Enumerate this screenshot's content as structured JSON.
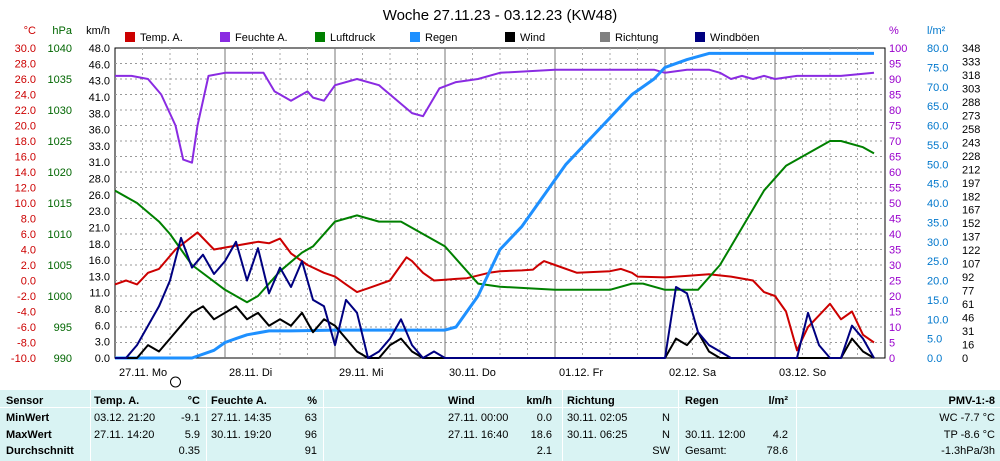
{
  "chart_data": {
    "type": "line",
    "title": "Woche 27.11.23 - 03.12.23 (KW48)",
    "x_range": [
      "27.11.23 00:00",
      "03.12.23 24:00"
    ],
    "categories": [
      "27.11. Mo",
      "28.11. Di",
      "29.11. Mi",
      "30.11. Do",
      "01.12. Fr",
      "02.12. Sa",
      "03.12. So"
    ],
    "grid": true,
    "axes_left": [
      {
        "unit": "°C",
        "range": [
          -10.0,
          30.0
        ],
        "color": "#cc0000",
        "ticks": [
          "30.0",
          "28.0",
          "26.0",
          "24.0",
          "22.0",
          "20.0",
          "18.0",
          "16.0",
          "14.0",
          "12.0",
          "10.0",
          "8.0",
          "6.0",
          "4.0",
          "2.0",
          "0.0",
          "-2.0",
          "-4.0",
          "-6.0",
          "-8.0",
          "-10.0"
        ]
      },
      {
        "unit": "hPa",
        "range": [
          990,
          1040
        ],
        "color": "#006600",
        "ticks": [
          "1040",
          "1035",
          "1030",
          "1025",
          "1020",
          "1015",
          "1010",
          "1005",
          "1000",
          "995",
          "990"
        ]
      },
      {
        "unit": "km/h",
        "range": [
          0,
          48
        ],
        "color": "#000000",
        "ticks": [
          "48.0",
          "46.0",
          "43.0",
          "41.0",
          "38.0",
          "36.0",
          "33.0",
          "31.0",
          "28.0",
          "26.0",
          "23.0",
          "21.0",
          "18.0",
          "16.0",
          "13.0",
          "11.0",
          "8.0",
          "6.0",
          "3.0",
          "0.0"
        ]
      }
    ],
    "axes_right": [
      {
        "unit": "%",
        "range": [
          0,
          100
        ],
        "color": "#9900cc",
        "ticks": [
          "100",
          "95",
          "90",
          "85",
          "80",
          "75",
          "70",
          "65",
          "60",
          "55",
          "50",
          "45",
          "40",
          "35",
          "30",
          "25",
          "20",
          "15",
          "10",
          "5",
          "0"
        ]
      },
      {
        "unit": "l/m²",
        "range": [
          0,
          80
        ],
        "color": "#0077cc",
        "ticks": [
          "80.0",
          "75.0",
          "70.0",
          "65.0",
          "60.0",
          "55.0",
          "50.0",
          "45.0",
          "40.0",
          "35.0",
          "30.0",
          "25.0",
          "20.0",
          "15.0",
          "10.0",
          "5.0",
          "0.0"
        ]
      },
      {
        "unit": "",
        "range": [
          0,
          360
        ],
        "color": "#000000",
        "ticks": [
          "348",
          "333",
          "318",
          "303",
          "288",
          "273",
          "258",
          "243",
          "228",
          "212",
          "197",
          "182",
          "167",
          "152",
          "137",
          "122",
          "107",
          "92",
          "77",
          "61",
          "46",
          "31",
          "16",
          "0"
        ]
      }
    ],
    "legend": [
      {
        "name": "Temp. A.",
        "color": "#cc0000"
      },
      {
        "name": "Feuchte A.",
        "color": "#8a2be2"
      },
      {
        "name": "Luftdruck",
        "color": "#008000"
      },
      {
        "name": "Regen",
        "color": "#1e90ff"
      },
      {
        "name": "Wind",
        "color": "#000000"
      },
      {
        "name": "Richtung",
        "color": "#808080"
      },
      {
        "name": "Windböen",
        "color": "#000080"
      }
    ],
    "legend_placement": "top",
    "series": [
      {
        "name": "Temp. A.",
        "axis": "°C",
        "x": [
          0,
          0.1,
          0.2,
          0.3,
          0.4,
          0.55,
          0.75,
          0.9,
          1.1,
          1.3,
          1.4,
          1.5,
          1.6,
          1.75,
          1.9,
          2.0,
          2.1,
          2.2,
          2.3,
          2.4,
          2.5,
          2.6,
          2.65,
          2.7,
          2.8,
          2.9,
          3.0,
          3.1,
          3.2,
          3.4,
          3.5,
          3.7,
          3.8,
          3.85,
          3.9,
          4.0,
          4.2,
          4.5,
          4.6,
          4.7,
          4.75,
          5.0,
          5.2,
          5.4,
          5.6,
          5.8,
          5.9,
          6.0,
          6.1,
          6.2,
          6.3,
          6.4,
          6.5,
          6.6,
          6.7,
          6.8,
          6.9
        ],
        "y": [
          -0.5,
          0,
          -0.5,
          1,
          1.5,
          4,
          6.2,
          4,
          4.5,
          5,
          4.8,
          5.4,
          3.5,
          2,
          1,
          0.5,
          -0.5,
          -1.5,
          -1,
          -0.5,
          0,
          2,
          3,
          2.5,
          1,
          0,
          0.1,
          0.2,
          0.3,
          1,
          1.2,
          1.3,
          1.4,
          2,
          2.5,
          2,
          1,
          1.2,
          1.5,
          1,
          0.5,
          0.4,
          0.6,
          0.8,
          0.5,
          0,
          -1.5,
          -2,
          -4,
          -9,
          -6,
          -4.5,
          -3,
          -5,
          -4,
          -7,
          -8
        ]
      },
      {
        "name": "Feuchte A.",
        "axis": "%",
        "x": [
          0,
          0.15,
          0.3,
          0.42,
          0.55,
          0.62,
          0.7,
          0.75,
          0.85,
          1.0,
          1.2,
          1.35,
          1.45,
          1.6,
          1.75,
          1.8,
          1.9,
          2.0,
          2.2,
          2.4,
          2.5,
          2.7,
          2.8,
          2.95,
          3.1,
          3.3,
          3.5,
          4.0,
          4.5,
          4.9,
          5.0,
          5.2,
          5.4,
          5.5,
          5.6,
          5.7,
          5.8,
          5.9,
          6.0,
          6.2,
          6.4,
          6.6,
          6.9
        ],
        "y": [
          91,
          91,
          90,
          85,
          75,
          64,
          63,
          75,
          91,
          92,
          92,
          92,
          86,
          83,
          86,
          84,
          83,
          88,
          90,
          88,
          85,
          79,
          78,
          87,
          89,
          90,
          92,
          93,
          93,
          93,
          92,
          93,
          93,
          92,
          90,
          91,
          90,
          91,
          90,
          91,
          91,
          91,
          92
        ]
      },
      {
        "name": "Luftdruck",
        "axis": "hPa",
        "x": [
          0,
          0.2,
          0.4,
          0.5,
          0.7,
          1.0,
          1.2,
          1.3,
          1.5,
          1.7,
          1.8,
          2.0,
          2.2,
          2.3,
          2.4,
          2.6,
          2.8,
          3.0,
          3.1,
          3.2,
          3.3,
          3.5,
          4.0,
          4.2,
          4.5,
          4.7,
          4.8,
          5.0,
          5.3,
          5.5,
          5.7,
          5.9,
          6.1,
          6.3,
          6.5,
          6.6,
          6.8,
          6.9
        ],
        "y": [
          1017,
          1015,
          1012,
          1010,
          1005,
          1001,
          999,
          1000,
          1004,
          1007,
          1008,
          1012,
          1013,
          1012.5,
          1012,
          1012,
          1010,
          1008,
          1006,
          1004,
          1002,
          1001.5,
          1001,
          1001,
          1001,
          1002,
          1002,
          1001,
          1001,
          1005,
          1011,
          1017,
          1021,
          1023,
          1025,
          1025,
          1024,
          1023
        ]
      },
      {
        "name": "Regen",
        "axis": "l/m²",
        "x": [
          0,
          0.3,
          0.5,
          0.7,
          0.9,
          1.0,
          1.1,
          1.2,
          1.4,
          1.6,
          2.0,
          2.5,
          3.0,
          3.1,
          3.3,
          3.5,
          3.7,
          3.9,
          4.1,
          4.3,
          4.5,
          4.7,
          4.9,
          5.0,
          5.2,
          5.4,
          6.0,
          6.5,
          6.9
        ],
        "y": [
          0,
          0,
          0,
          0,
          2,
          4,
          5,
          6,
          7,
          7,
          7.2,
          7.2,
          7.2,
          8,
          16,
          28,
          34,
          42,
          50,
          56,
          62,
          68,
          72,
          75,
          77,
          78.6,
          78.6,
          78.6,
          78.6
        ]
      },
      {
        "name": "Wind",
        "axis": "km/h",
        "x": [
          0,
          0.1,
          0.2,
          0.3,
          0.4,
          0.5,
          0.6,
          0.7,
          0.8,
          0.9,
          1.0,
          1.1,
          1.2,
          1.3,
          1.4,
          1.5,
          1.6,
          1.7,
          1.8,
          1.9,
          2.0,
          2.1,
          2.2,
          2.3,
          2.4,
          2.5,
          2.6,
          2.7,
          2.8,
          2.9,
          3.0,
          4.0,
          4.5,
          4.8,
          5.0,
          5.1,
          5.2,
          5.3,
          5.4,
          5.5,
          5.6,
          5.8,
          6.0,
          6.1,
          6.2,
          6.3,
          6.4,
          6.5,
          6.6,
          6.7,
          6.8,
          6.9
        ],
        "y": [
          0,
          0,
          0,
          2,
          1,
          3,
          5,
          7,
          8,
          6,
          7,
          8,
          6,
          7,
          5,
          6,
          5,
          7,
          4,
          6,
          5,
          3,
          1,
          0,
          0,
          2,
          3,
          1,
          0,
          0,
          0,
          0,
          0,
          0,
          0,
          3,
          2,
          4,
          1,
          0,
          0,
          0,
          0,
          0,
          0,
          0,
          0,
          0,
          0,
          3,
          1,
          0
        ]
      },
      {
        "name": "Windböen",
        "axis": "km/h",
        "x": [
          0,
          0.1,
          0.2,
          0.3,
          0.4,
          0.5,
          0.6,
          0.7,
          0.8,
          0.9,
          1.0,
          1.1,
          1.2,
          1.3,
          1.4,
          1.5,
          1.6,
          1.7,
          1.8,
          1.9,
          2.0,
          2.1,
          2.2,
          2.3,
          2.4,
          2.5,
          2.6,
          2.7,
          2.8,
          2.9,
          3.0,
          4.0,
          4.5,
          4.8,
          5.0,
          5.1,
          5.2,
          5.3,
          5.4,
          5.5,
          5.6,
          5.8,
          6.0,
          6.1,
          6.2,
          6.3,
          6.4,
          6.5,
          6.6,
          6.7,
          6.8,
          6.9
        ],
        "y": [
          0,
          0,
          2,
          5,
          8,
          12,
          18.6,
          14,
          16,
          13,
          15,
          18,
          12,
          17,
          10,
          14,
          11,
          15,
          9,
          8,
          2,
          9,
          7,
          0,
          1,
          3,
          6,
          2,
          0,
          1,
          0,
          0,
          0,
          0,
          0,
          11,
          10,
          4,
          2,
          1,
          0,
          0,
          0,
          0,
          0,
          7,
          2,
          0,
          0,
          5,
          3,
          0
        ]
      }
    ]
  },
  "footer": {
    "sensor": {
      "label": "Sensor",
      "rows": [
        "MinWert",
        "MaxWert",
        "Durchschnitt"
      ]
    },
    "temp": {
      "label": "Temp. A.",
      "unit": "°C",
      "rows": [
        {
          "date": "03.12. 21:20",
          "value": "-9.1"
        },
        {
          "date": "27.11. 14:20",
          "value": "5.9"
        },
        {
          "date": "",
          "value": "0.35"
        }
      ]
    },
    "feuchte": {
      "label": "Feuchte A.",
      "unit": "%",
      "rows": [
        {
          "date": "27.11. 14:35",
          "value": "63"
        },
        {
          "date": "30.11. 19:20",
          "value": "96"
        },
        {
          "date": "",
          "value": "91"
        }
      ]
    },
    "wind": {
      "label": "Wind",
      "unit": "km/h",
      "rows": [
        {
          "date": "27.11. 00:00",
          "value": "0.0"
        },
        {
          "date": "27.11. 16:40",
          "value": "18.6"
        },
        {
          "date": "",
          "value": "2.1"
        }
      ]
    },
    "richtung": {
      "label": "Richtung",
      "rows": [
        {
          "date": "30.11. 02:05",
          "value": "N"
        },
        {
          "date": "30.11. 06:25",
          "value": "N"
        },
        {
          "date": "",
          "value": "SW"
        }
      ]
    },
    "regen": {
      "label": "Regen",
      "unit": "l/m²",
      "rows": [
        {
          "date": "",
          "value": ""
        },
        {
          "date": "30.11. 12:00",
          "value": "4.2"
        },
        {
          "date": "Gesamt:",
          "value": "78.6"
        }
      ]
    },
    "pmv": {
      "label": "PMV-1:-8",
      "rows": [
        "WC -7.7 °C",
        "TP -8.6 °C",
        "-1.3hPa/3h"
      ]
    }
  }
}
